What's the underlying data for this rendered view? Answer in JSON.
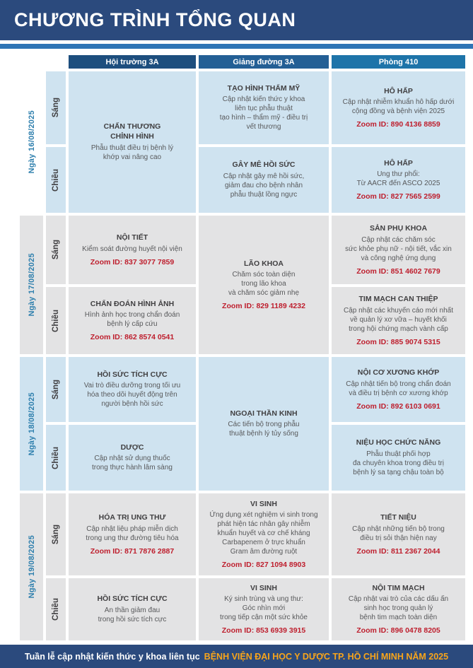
{
  "title": "CHƯƠNG TRÌNH TỔNG QUAN",
  "columns": [
    "Hội trường 3A",
    "Giảng đường 3A",
    "Phòng 410"
  ],
  "days": [
    {
      "date": "Ngày 16/08/2025",
      "sessions": [
        "Sáng",
        "Chiều"
      ],
      "cells": [
        {
          "room": "Hội trường 3A",
          "span": "both",
          "title": "CHẤN THƯƠNG\nCHỈNH HÌNH",
          "desc": "Phẫu thuật điều trị bệnh lý\nkhớp vai nâng cao"
        },
        {
          "room": "Giảng đường 3A",
          "span": "sang",
          "title": "TẠO HÌNH THẨM MỸ",
          "desc": "Cập nhật kiến thức y khoa\nliên tục phẫu thuật\ntạo hình – thẩm mỹ - điều trị\nvết thương"
        },
        {
          "room": "Phòng 410",
          "span": "sang",
          "title": "HÔ HẤP",
          "desc": "Cập nhật nhiễm khuẩn hô hấp dưới\ncộng đồng và bệnh viện 2025",
          "zoom_id": "Zoom ID: 890 4136 8859"
        },
        {
          "room": "Giảng đường 3A",
          "span": "chieu",
          "title": "GÂY MÊ HỒI SỨC",
          "desc": "Cập nhật gây mê hồi sức,\ngiảm đau cho bệnh nhân\nphẫu thuật lồng ngực"
        },
        {
          "room": "Phòng 410",
          "span": "chieu",
          "title": "HÔ HẤP",
          "desc": "Ung thư phổi:\nTừ AACR đến ASCO 2025",
          "zoom_id": "Zoom ID: 827 7565 2599"
        }
      ]
    },
    {
      "date": "Ngày 17/08/2025",
      "sessions": [
        "Sáng",
        "Chiều"
      ],
      "cells": [
        {
          "room": "Hội trường 3A",
          "span": "sang",
          "title": "NỘI TIẾT",
          "desc": "Kiểm soát đường huyết nội viện",
          "zoom_id": "Zoom ID: 837 3077 7859"
        },
        {
          "room": "Hội trường 3A",
          "span": "chieu",
          "title": "CHẨN ĐOÁN HÌNH ẢNH",
          "desc": "Hình ảnh học trong chẩn đoán\nbệnh lý cấp cứu",
          "zoom_id": "Zoom ID: 862 8574 0541"
        },
        {
          "room": "Giảng đường 3A",
          "span": "both",
          "title": "LÃO KHOA",
          "desc": "Chăm sóc toàn diện\ntrong lão khoa\nvà chăm sóc giảm nhẹ",
          "zoom_id": "Zoom ID: 829 1189 4232"
        },
        {
          "room": "Phòng 410",
          "span": "sang",
          "title": "SẢN PHỤ KHOA",
          "desc": "Cập nhật các chăm sóc\nsức khỏe phụ nữ - nội tiết, vắc xin\nvà công nghệ ứng dụng",
          "zoom_id": "Zoom ID: 851 4602 7679"
        },
        {
          "room": "Phòng 410",
          "span": "chieu",
          "title": "TIM MẠCH CAN THIỆP",
          "desc": "Cập nhật các khuyến cáo mới nhất\nvề quản lý xơ vữa – huyết khối\ntrong hội chứng mạch vành cấp",
          "zoom_id": "Zoom ID: 885 9074 5315"
        }
      ]
    },
    {
      "date": "Ngày 18/08/2025",
      "sessions": [
        "Sáng",
        "Chiều"
      ],
      "cells": [
        {
          "room": "Hội trường 3A",
          "span": "sang",
          "title": "HỒI SỨC TÍCH CỰC",
          "desc": "Vai trò điều dưỡng trong tối ưu\nhóa theo dõi huyết động trên\nngười bệnh hồi sức"
        },
        {
          "room": "Hội trường 3A",
          "span": "chieu",
          "title": "DƯỢC",
          "desc": "Cập nhật sử dụng thuốc\ntrong thực hành lâm sàng"
        },
        {
          "room": "Giảng đường 3A",
          "span": "both",
          "title": "NGOẠI THẦN KINH",
          "desc": "Các tiến bộ trong phẫu\nthuật bệnh lý tủy sống"
        },
        {
          "room": "Phòng 410",
          "span": "sang",
          "title": "NỘI CƠ XƯƠNG KHỚP",
          "desc": "Cập nhật tiến bộ trong chẩn đoán\nvà điều trị bệnh cơ xương khớp",
          "zoom_id": "Zoom ID: 892 6103 0691"
        },
        {
          "room": "Phòng 410",
          "span": "chieu",
          "title": "NIỆU HỌC CHỨC NĂNG",
          "desc": "Phẫu thuật phối hợp\nđa chuyên khoa trong điều trị\nbệnh lý sa tạng chậu toàn bộ"
        }
      ]
    },
    {
      "date": "Ngày 19/08/2025",
      "sessions": [
        "Sáng",
        "Chiều"
      ],
      "cells": [
        {
          "room": "Hội trường 3A",
          "span": "sang",
          "title": "HÓA TRỊ UNG THƯ",
          "desc": "Cập nhật liệu pháp miễn dịch\ntrong ung thư đường tiêu hóa",
          "zoom_id": "Zoom ID: 871 7876 2887"
        },
        {
          "room": "Hội trường 3A",
          "span": "chieu",
          "title": "HỒI SỨC TÍCH CỰC",
          "desc": "An thần giảm đau\ntrong hồi sức tích cực"
        },
        {
          "room": "Giảng đường 3A",
          "span": "sang",
          "title": "VI SINH",
          "desc": "Ứng dụng xét nghiệm vi sinh trong\nphát hiện tác nhân gây nhiễm\nkhuẩn huyết và cơ chế kháng\nCarbapenem ở trực khuẩn\nGram âm đường ruột",
          "zoom_id": "Zoom ID: 827 1094 8903"
        },
        {
          "room": "Giảng đường 3A",
          "span": "chieu",
          "title": "VI SINH",
          "desc": "Ký sinh trùng và ung thư:\nGóc nhìn mới\ntrong tiếp cận một sức khỏe",
          "zoom_id": "Zoom ID: 853 6939 3915"
        },
        {
          "room": "Phòng 410",
          "span": "sang",
          "title": "TIẾT NIỆU",
          "desc": "Cập nhật những tiến bộ trong\nđiều trị sỏi thận hiện nay",
          "zoom_id": "Zoom ID: 811 2367 2044"
        },
        {
          "room": "Phòng 410",
          "span": "chieu",
          "title": "NỘI TIM MẠCH",
          "desc": "Cập nhật vai trò của các dấu ấn\nsinh học trong quản lý\nbệnh tim mạch toàn diện",
          "zoom_id": "Zoom ID: 896 0478 8205"
        }
      ]
    }
  ],
  "footer": {
    "prefix": "Tuần lễ cập nhật kiến thức y khoa liên tục",
    "highlight": "BỆNH VIỆN ĐẠI HỌC Y DƯỢC TP. HỒ CHÍ MINH NĂM 2025"
  },
  "colors": {
    "navy_bar": "#2B4A7D",
    "accent_line": "#2E74B5",
    "header_col1": "#1D4E7E",
    "header_col2": "#235F95",
    "header_col3": "#1E74A9",
    "row_blue": "#CFE3F0",
    "row_gray": "#E3E3E4",
    "zoom_red": "#BE1E2D",
    "date_text": "#2E7FAD",
    "footer_highlight": "#F9A51A"
  }
}
